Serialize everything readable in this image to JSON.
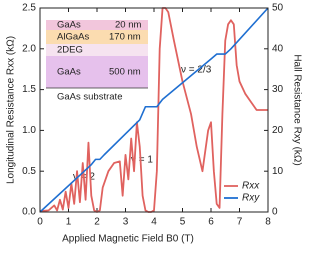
{
  "chart_data": {
    "type": "line",
    "xlabel": "Applied Magnetic Field B0 (T)",
    "ylabel": "Longitudinal Resistance Rxx (kΩ)",
    "y2label": "Hall Resistance Rxy (kΩ)",
    "xlim": [
      0,
      8
    ],
    "xticks": [
      0,
      1,
      2,
      3,
      4,
      5,
      6,
      7,
      8
    ],
    "ylim": [
      0,
      2.5
    ],
    "yticks": [
      {
        "value": 0,
        "label": "0.0"
      },
      0.5,
      {
        "value": 1,
        "label": "1.0"
      },
      1.5,
      {
        "value": 2,
        "label": "2.0"
      },
      2.5
    ],
    "y2lim": [
      0,
      50
    ],
    "y2ticks": [
      0,
      10,
      20,
      30,
      40,
      50
    ],
    "legend": "lower right",
    "annotations": [
      "ν = 2",
      "ν = 1",
      "ν = 2/3"
    ],
    "inset": {
      "layers": [
        {
          "name": "GaAs",
          "thickness": "20 nm"
        },
        {
          "name": "AlGaAs",
          "thickness": "170 nm"
        },
        {
          "name": "2DEG"
        },
        {
          "name": "GaAs",
          "thickness": "500 nm"
        },
        {
          "name": "GaAs substrate"
        }
      ]
    },
    "series": [
      {
        "name": "Rxx",
        "color": "#e0625f",
        "x": [
          0,
          0.3,
          0.5,
          0.6,
          0.7,
          0.8,
          0.9,
          1.0,
          1.1,
          1.2,
          1.3,
          1.4,
          1.5,
          1.6,
          1.7,
          1.8,
          1.9,
          2.0,
          2.1,
          2.2,
          2.4,
          2.6,
          2.8,
          2.9,
          3.0,
          3.1,
          3.2,
          3.3,
          3.4,
          3.5,
          3.6,
          3.7,
          3.8,
          3.9,
          4.0,
          4.1,
          4.2,
          4.3,
          4.4,
          4.5,
          4.7,
          5.0,
          5.3,
          5.5,
          5.7,
          5.9,
          6.0,
          6.1,
          6.2,
          6.3,
          6.4,
          6.5,
          6.6,
          6.7,
          6.8,
          6.9,
          7.0,
          7.2,
          7.4,
          7.6,
          7.8,
          8.0
        ],
        "values": [
          0.01,
          0.02,
          0.08,
          0.02,
          0.15,
          0.03,
          0.25,
          0.05,
          0.35,
          0.1,
          0.5,
          0.12,
          0.6,
          0.15,
          0.85,
          0.2,
          0.02,
          0.0,
          0.02,
          0.3,
          0.5,
          0.6,
          0.62,
          0.2,
          0.7,
          0.4,
          0.9,
          0.5,
          1.1,
          0.8,
          0.2,
          0.02,
          0.0,
          0.0,
          0.02,
          0.5,
          2.0,
          2.5,
          2.5,
          2.45,
          2.1,
          1.6,
          1.2,
          0.8,
          0.5,
          1.0,
          1.1,
          0.5,
          0.1,
          0.05,
          1.2,
          2.1,
          2.3,
          2.35,
          2.3,
          1.8,
          1.6,
          1.45,
          1.35,
          1.25,
          1.25,
          1.25
        ]
      },
      {
        "name": "Rxy",
        "color": "#1f6fd1",
        "axis": "y2",
        "x": [
          0,
          1.8,
          1.95,
          2.1,
          2.25,
          3.5,
          3.7,
          4.1,
          4.3,
          6.0,
          6.2,
          6.5,
          6.7,
          8.0
        ],
        "values": [
          0,
          11.6,
          12.9,
          12.9,
          14.0,
          22.6,
          25.8,
          25.8,
          27.6,
          37.5,
          38.7,
          38.7,
          40.0,
          50
        ]
      }
    ]
  }
}
